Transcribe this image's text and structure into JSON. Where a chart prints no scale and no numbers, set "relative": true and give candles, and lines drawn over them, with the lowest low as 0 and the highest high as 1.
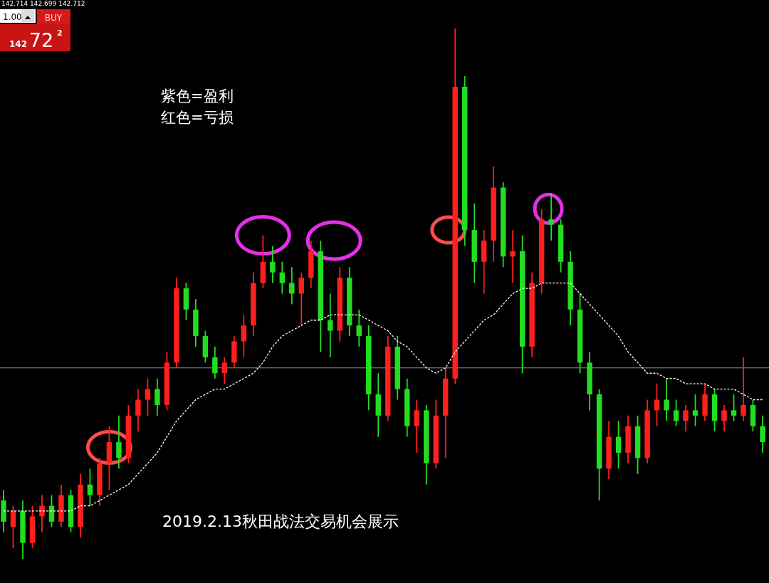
{
  "chart_data": {
    "type": "candlestick",
    "relative": true,
    "legend": false,
    "grid": false,
    "categories": [
      null,
      null,
      null,
      null,
      null,
      null,
      null,
      null,
      null,
      null,
      null,
      null,
      null,
      null,
      null,
      null,
      null,
      null,
      null,
      null,
      null,
      null,
      null,
      null,
      null,
      null,
      null,
      null,
      null,
      null,
      null,
      null,
      null,
      null,
      null,
      null,
      null,
      null,
      null,
      null,
      null,
      null,
      null,
      null,
      null,
      null,
      null,
      null,
      null,
      null,
      null,
      null,
      null,
      null,
      null,
      null,
      null,
      null,
      null,
      null,
      null,
      null,
      null,
      null,
      null,
      null,
      null,
      null,
      null,
      null,
      null,
      null,
      null,
      null,
      null,
      null,
      null,
      null,
      null,
      null
    ],
    "ohlc": [
      [
        0.11,
        0.13,
        0.05,
        0.07
      ],
      [
        0.06,
        0.1,
        0.02,
        0.09
      ],
      [
        0.09,
        0.11,
        0,
        0.03
      ],
      [
        0.03,
        0.1,
        0.02,
        0.08
      ],
      [
        0.08,
        0.12,
        0.05,
        0.1
      ],
      [
        0.1,
        0.12,
        0.06,
        0.07
      ],
      [
        0.07,
        0.14,
        0.06,
        0.12
      ],
      [
        0.12,
        0.13,
        0.05,
        0.06
      ],
      [
        0.06,
        0.16,
        0.04,
        0.14
      ],
      [
        0.14,
        0.17,
        0.1,
        0.12
      ],
      [
        0.12,
        0.19,
        0.1,
        0.18
      ],
      [
        0.18,
        0.25,
        0.13,
        0.22
      ],
      [
        0.22,
        0.27,
        0.17,
        0.19
      ],
      [
        0.19,
        0.29,
        0.18,
        0.27
      ],
      [
        0.27,
        0.32,
        0.24,
        0.3
      ],
      [
        0.3,
        0.34,
        0.27,
        0.32
      ],
      [
        0.32,
        0.34,
        0.27,
        0.29
      ],
      [
        0.29,
        0.39,
        0.28,
        0.37
      ],
      [
        0.37,
        0.53,
        0.36,
        0.51
      ],
      [
        0.51,
        0.52,
        0.45,
        0.47
      ],
      [
        0.47,
        0.49,
        0.4,
        0.42
      ],
      [
        0.42,
        0.43,
        0.37,
        0.38
      ],
      [
        0.38,
        0.4,
        0.34,
        0.35
      ],
      [
        0.35,
        0.38,
        0.33,
        0.37
      ],
      [
        0.37,
        0.42,
        0.36,
        0.41
      ],
      [
        0.41,
        0.46,
        0.38,
        0.44
      ],
      [
        0.44,
        0.54,
        0.42,
        0.52
      ],
      [
        0.52,
        0.61,
        0.51,
        0.56
      ],
      [
        0.56,
        0.59,
        0.52,
        0.54
      ],
      [
        0.54,
        0.56,
        0.5,
        0.52
      ],
      [
        0.52,
        0.55,
        0.48,
        0.5
      ],
      [
        0.5,
        0.54,
        0.44,
        0.53
      ],
      [
        0.53,
        0.6,
        0.51,
        0.58
      ],
      [
        0.58,
        0.6,
        0.39,
        0.45
      ],
      [
        0.45,
        0.5,
        0.38,
        0.43
      ],
      [
        0.43,
        0.55,
        0.41,
        0.53
      ],
      [
        0.53,
        0.55,
        0.42,
        0.44
      ],
      [
        0.44,
        0.47,
        0.4,
        0.42
      ],
      [
        0.42,
        0.44,
        0.28,
        0.31
      ],
      [
        0.31,
        0.35,
        0.23,
        0.27
      ],
      [
        0.27,
        0.42,
        0.26,
        0.4
      ],
      [
        0.4,
        0.42,
        0.3,
        0.32
      ],
      [
        0.32,
        0.34,
        0.23,
        0.25
      ],
      [
        0.25,
        0.3,
        0.2,
        0.28
      ],
      [
        0.28,
        0.29,
        0.14,
        0.18
      ],
      [
        0.18,
        0.3,
        0.17,
        0.27
      ],
      [
        0.27,
        0.36,
        0.19,
        0.34
      ],
      [
        0.34,
        1.0,
        0.33,
        0.89
      ],
      [
        0.89,
        0.91,
        0.59,
        0.62
      ],
      [
        0.62,
        0.67,
        0.52,
        0.56
      ],
      [
        0.56,
        0.62,
        0.5,
        0.6
      ],
      [
        0.6,
        0.74,
        0.56,
        0.7
      ],
      [
        0.7,
        0.71,
        0.55,
        0.57
      ],
      [
        0.57,
        0.62,
        0.52,
        0.58
      ],
      [
        0.58,
        0.61,
        0.35,
        0.4
      ],
      [
        0.4,
        0.54,
        0.38,
        0.52
      ],
      [
        0.52,
        0.66,
        0.5,
        0.64
      ],
      [
        0.64,
        0.69,
        0.6,
        0.63
      ],
      [
        0.63,
        0.64,
        0.54,
        0.56
      ],
      [
        0.56,
        0.58,
        0.44,
        0.47
      ],
      [
        0.47,
        0.5,
        0.35,
        0.37
      ],
      [
        0.37,
        0.39,
        0.28,
        0.31
      ],
      [
        0.31,
        0.32,
        0.11,
        0.17
      ],
      [
        0.17,
        0.26,
        0.15,
        0.23
      ],
      [
        0.23,
        0.26,
        0.17,
        0.2
      ],
      [
        0.2,
        0.27,
        0.18,
        0.25
      ],
      [
        0.25,
        0.27,
        0.16,
        0.19
      ],
      [
        0.19,
        0.3,
        0.18,
        0.28
      ],
      [
        0.28,
        0.33,
        0.25,
        0.3
      ],
      [
        0.3,
        0.34,
        0.26,
        0.28
      ],
      [
        0.28,
        0.3,
        0.25,
        0.26
      ],
      [
        0.26,
        0.29,
        0.24,
        0.28
      ],
      [
        0.28,
        0.31,
        0.25,
        0.27
      ],
      [
        0.27,
        0.33,
        0.26,
        0.31
      ],
      [
        0.31,
        0.32,
        0.24,
        0.26
      ],
      [
        0.26,
        0.29,
        0.24,
        0.28
      ],
      [
        0.28,
        0.31,
        0.26,
        0.27
      ],
      [
        0.27,
        0.38,
        0.26,
        0.29
      ],
      [
        0.29,
        0.3,
        0.24,
        0.25
      ],
      [
        0.25,
        0.27,
        0.2,
        0.22
      ]
    ],
    "colors": [
      "#22dd22",
      "#ff1f1f",
      "#22dd22",
      "#ff1f1f",
      "#ff1f1f",
      "#22dd22",
      "#ff1f1f",
      "#22dd22",
      "#ff1f1f",
      "#22dd22",
      "#ff1f1f",
      "#ff1f1f",
      "#22dd22",
      "#ff1f1f",
      "#ff1f1f",
      "#ff1f1f",
      "#22dd22",
      "#ff1f1f",
      "#ff1f1f",
      "#22dd22",
      "#22dd22",
      "#22dd22",
      "#22dd22",
      "#ff1f1f",
      "#ff1f1f",
      "#ff1f1f",
      "#ff1f1f",
      "#ff1f1f",
      "#22dd22",
      "#22dd22",
      "#22dd22",
      "#ff1f1f",
      "#ff1f1f",
      "#22dd22",
      "#22dd22",
      "#ff1f1f",
      "#22dd22",
      "#22dd22",
      "#22dd22",
      "#22dd22",
      "#ff1f1f",
      "#22dd22",
      "#22dd22",
      "#ff1f1f",
      "#22dd22",
      "#ff1f1f",
      "#ff1f1f",
      "#ff1f1f",
      "#22dd22",
      "#22dd22",
      "#ff1f1f",
      "#ff1f1f",
      "#22dd22",
      "#ff1f1f",
      "#22dd22",
      "#ff1f1f",
      "#ff1f1f",
      "#22dd22",
      "#22dd22",
      "#22dd22",
      "#22dd22",
      "#22dd22",
      "#22dd22",
      "#ff1f1f",
      "#22dd22",
      "#ff1f1f",
      "#22dd22",
      "#ff1f1f",
      "#ff1f1f",
      "#22dd22",
      "#22dd22",
      "#ff1f1f",
      "#22dd22",
      "#ff1f1f",
      "#22dd22",
      "#ff1f1f",
      "#22dd22",
      "#ff1f1f",
      "#22dd22",
      "#22dd22"
    ],
    "series": [
      {
        "type": "line",
        "color": "#ffffff",
        "line_style": "dashed",
        "values": [
          0.09,
          0.09,
          0.09,
          0.09,
          0.09,
          0.09,
          0.09,
          0.09,
          0.1,
          0.1,
          0.11,
          0.12,
          0.13,
          0.14,
          0.16,
          0.18,
          0.2,
          0.23,
          0.26,
          0.28,
          0.3,
          0.31,
          0.32,
          0.32,
          0.33,
          0.34,
          0.35,
          0.37,
          0.4,
          0.42,
          0.43,
          0.44,
          0.45,
          0.45,
          0.46,
          0.46,
          0.46,
          0.46,
          0.45,
          0.44,
          0.43,
          0.41,
          0.4,
          0.38,
          0.36,
          0.35,
          0.36,
          0.39,
          0.41,
          0.43,
          0.45,
          0.46,
          0.48,
          0.5,
          0.51,
          0.51,
          0.52,
          0.52,
          0.52,
          0.52,
          0.5,
          0.48,
          0.46,
          0.44,
          0.42,
          0.39,
          0.37,
          0.35,
          0.35,
          0.34,
          0.34,
          0.33,
          0.33,
          0.33,
          0.32,
          0.32,
          0.32,
          0.31,
          0.3,
          0.3
        ]
      }
    ],
    "ref_lines": [
      {
        "axis": "y",
        "value": 0.36,
        "color": "#8a8f99"
      }
    ],
    "annotations": [
      "142.714 142.699 142.712",
      "1.00",
      "BUY",
      "142",
      "72",
      "2",
      "紫色=盈利",
      "红色=亏损",
      "2019.2.13秋田战法交易机会展示"
    ]
  }
}
